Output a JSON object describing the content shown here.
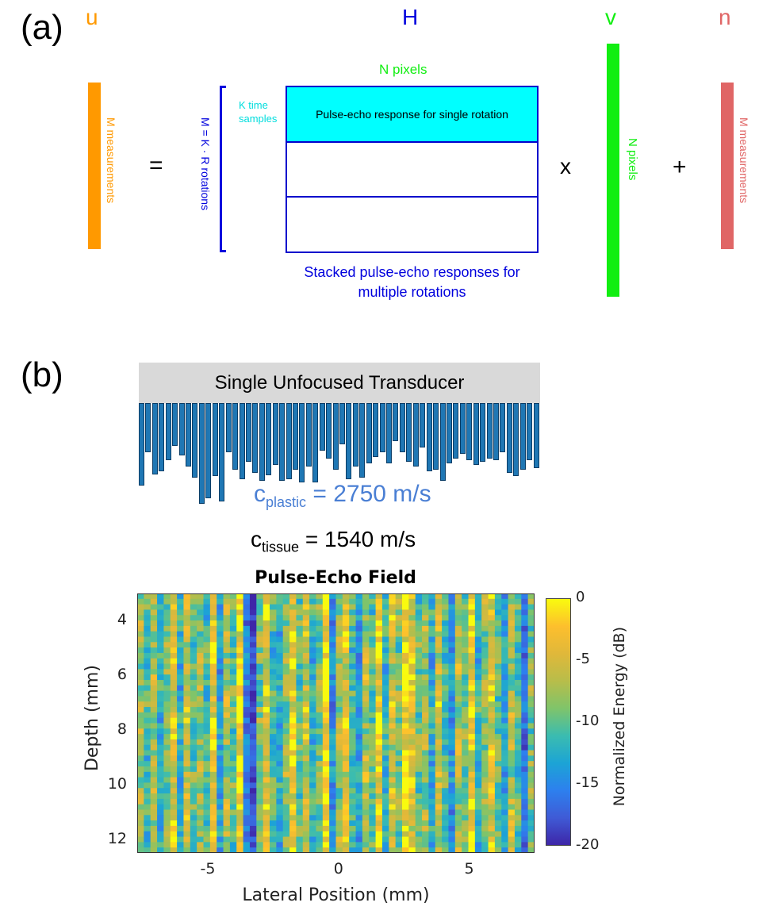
{
  "panel_a": {
    "label": "(a)",
    "u": {
      "symbol": "u",
      "label": "M measurements",
      "color": "#ff9900"
    },
    "H": {
      "symbol": "H",
      "color": "#0000dd",
      "top_label": "N pixels",
      "row_label": "K time samples",
      "row_label_line1": "K time",
      "row_label_line2": "samples",
      "side_label": "M = K · R rotations",
      "first_row_text": "Pulse-echo response for single rotation",
      "bottom_label_line1": "Stacked pulse-echo responses for",
      "bottom_label_line2": "multiple rotations",
      "cyan": "#00ffff"
    },
    "equals": "=",
    "times": "x",
    "plus": "+",
    "v": {
      "symbol": "v",
      "label": "N pixels",
      "color": "#11ee11"
    },
    "n": {
      "symbol": "n",
      "label": "M measurements",
      "color": "#e06666"
    }
  },
  "panel_b": {
    "label": "(b)",
    "transducer_label": "Single Unfocused Transducer",
    "c_plastic": {
      "base": "c",
      "sub": "plastic",
      "value": "= 2750 m/s",
      "color": "#4a7fd4"
    },
    "c_tissue": {
      "base": "c",
      "sub": "tissue",
      "value": "= 1540 m/s"
    },
    "bar_color": "#1f77b4",
    "bar_lengths": [
      104,
      62,
      90,
      86,
      72,
      54,
      66,
      80,
      94,
      127,
      120,
      92,
      124,
      62,
      84,
      96,
      74,
      88,
      98,
      91,
      78,
      98,
      96,
      84,
      100,
      80,
      100,
      60,
      70,
      84,
      52,
      96,
      80,
      94,
      76,
      68,
      62,
      76,
      48,
      62,
      74,
      80,
      56,
      86,
      84,
      98,
      76,
      70,
      64,
      72,
      78,
      74,
      70,
      72,
      62,
      88,
      92,
      84,
      72,
      82
    ],
    "heatmap": {
      "title": "Pulse-Echo Field",
      "xlabel": "Lateral Position (mm)",
      "ylabel": "Depth (mm)",
      "colorbar_label": "Normalized Energy (dB)",
      "xlim": [
        -7.7,
        7.5
      ],
      "ylim": [
        3.0,
        12.5
      ],
      "xticks": [
        -5,
        0,
        5
      ],
      "yticks": [
        4,
        6,
        8,
        10,
        12
      ],
      "clim": [
        -20,
        0
      ],
      "cticks": [
        0,
        -5,
        -10,
        -15,
        -20
      ],
      "columns": 60,
      "rows": 48,
      "column_profile_db": [
        -6,
        -9,
        -5,
        -10,
        -7,
        -3,
        -11,
        -4,
        -8,
        -6,
        -9,
        -2,
        -12,
        -5,
        -8,
        -1,
        -14,
        -18,
        -7,
        -3,
        -9,
        -11,
        -6,
        -2,
        -8,
        -4,
        -10,
        -7,
        -1,
        -13,
        -6,
        -3,
        -9,
        -12,
        -5,
        -8,
        -2,
        -10,
        -4,
        -7,
        -1,
        -3,
        -8,
        -6,
        -11,
        -4,
        -9,
        -13,
        -5,
        -7,
        -2,
        -10,
        -6,
        -3,
        -8,
        -12,
        -5,
        -9,
        -15,
        -7
      ]
    }
  }
}
